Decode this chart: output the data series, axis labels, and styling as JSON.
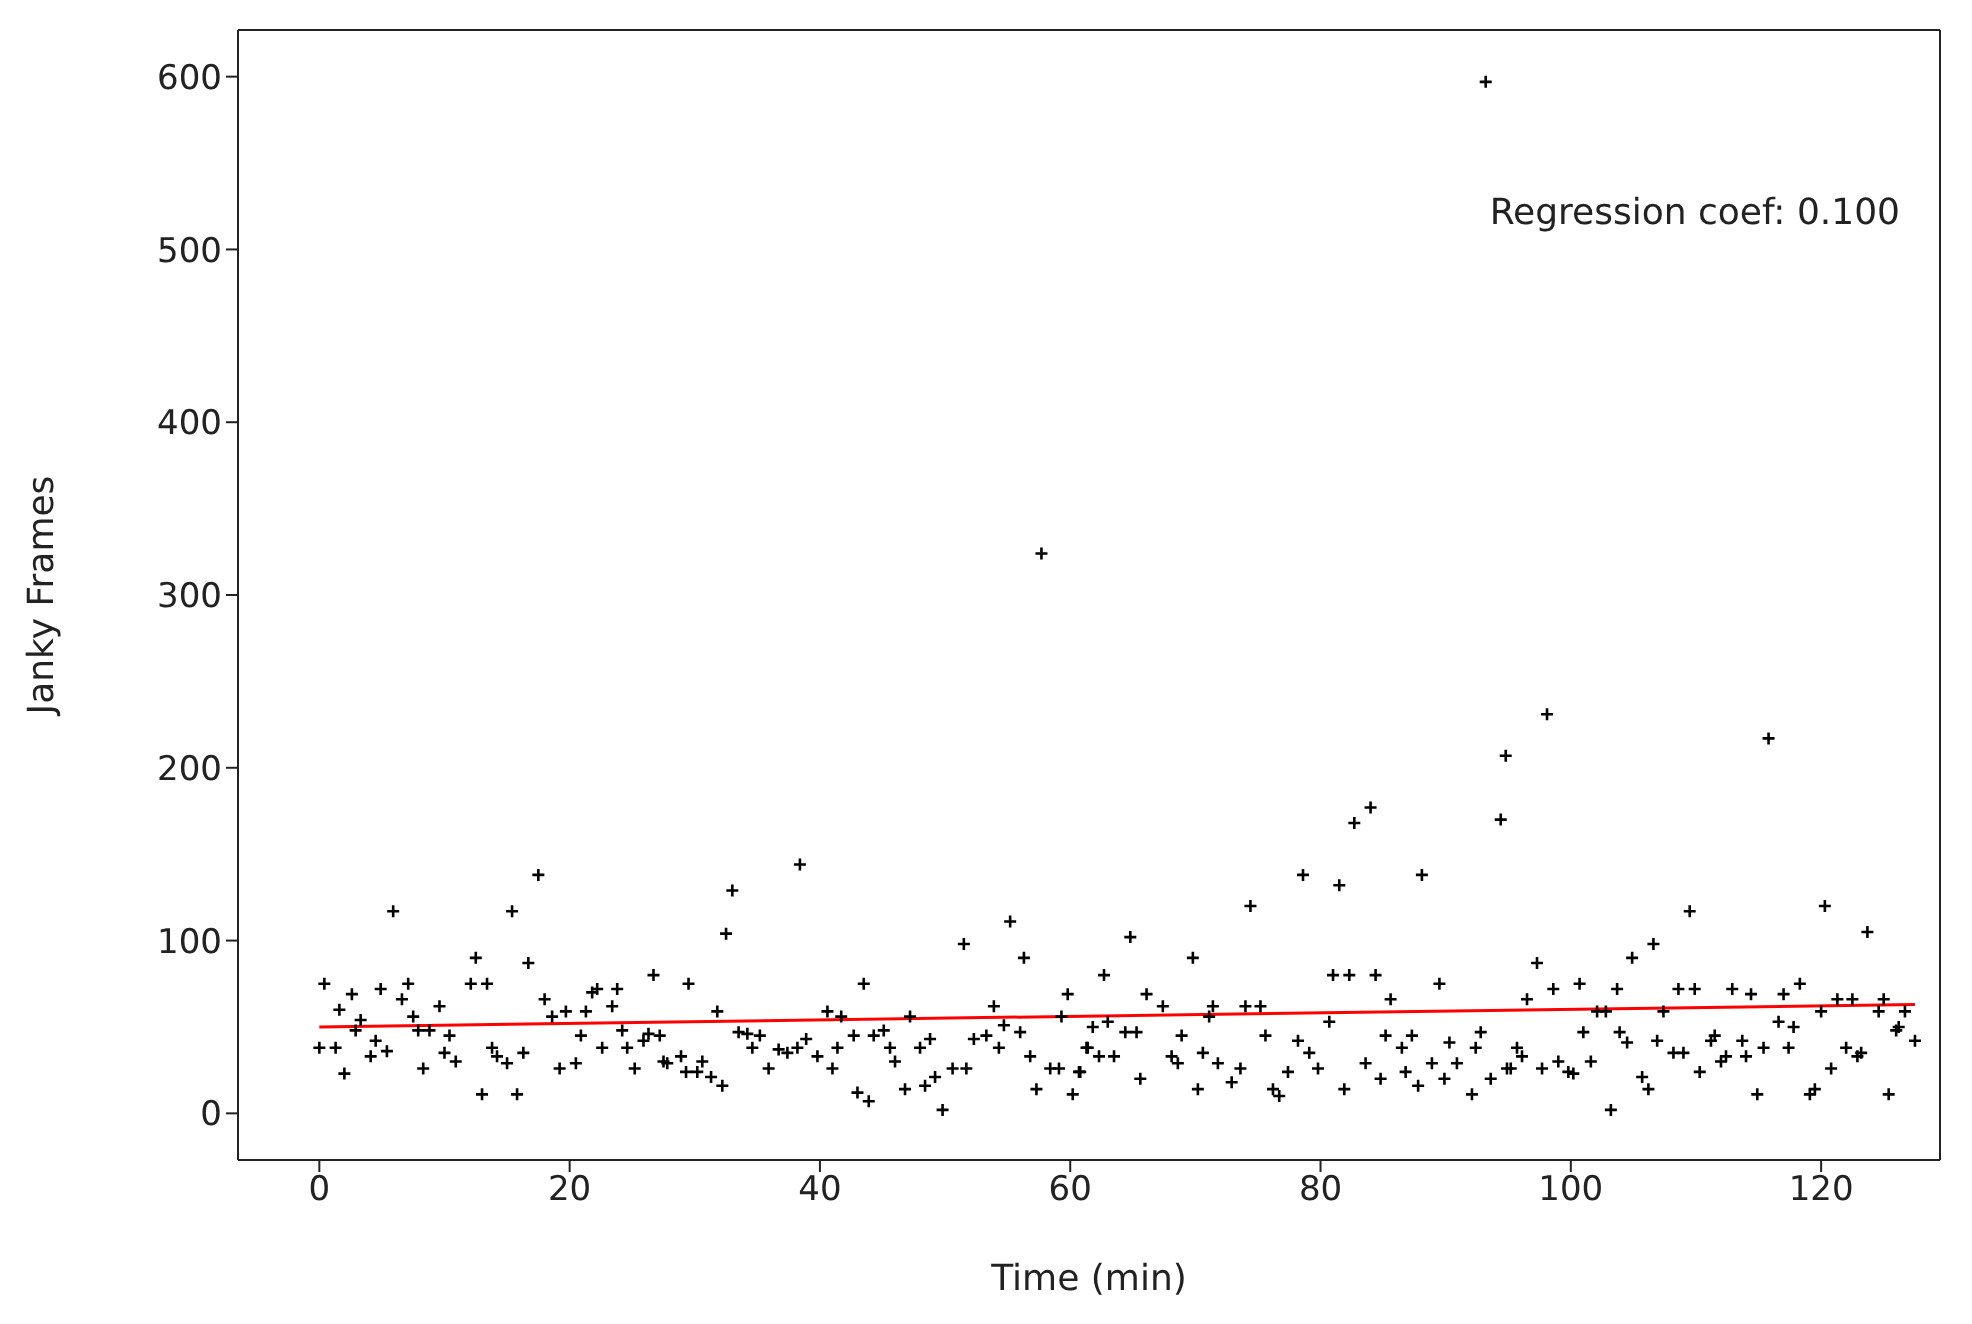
{
  "chart_data": {
    "type": "scatter",
    "xlabel": "Time (min)",
    "ylabel": "Janky Frames",
    "annotations": [
      "Regression coef: 0.100"
    ],
    "xlim": [
      -6.5,
      129.5
    ],
    "xticks": [
      0,
      20,
      40,
      60,
      80,
      100,
      120
    ],
    "ylim": [
      -27,
      627
    ],
    "yticks": [
      0,
      100,
      200,
      300,
      400,
      500,
      600
    ],
    "marker": "cross",
    "series": [
      {
        "color": "#000000",
        "x": [
          0.4,
          0,
          1.3,
          2,
          1.6,
          2.6,
          3.3,
          2.9,
          4.5,
          4.1,
          5.4,
          4.9,
          5.9,
          6.6,
          7.1,
          7.5,
          7.9,
          8.8,
          8.3,
          9.6,
          10.4,
          10,
          10.9,
          12.1,
          13.4,
          12.5,
          13,
          13.8,
          14.2,
          15,
          15.4,
          16.3,
          15.8,
          16.7,
          17.5,
          18,
          18.6,
          19.7,
          19.2,
          20.5,
          20.9,
          21.3,
          21.8,
          22.2,
          22.6,
          23.4,
          23.8,
          24.2,
          24.6,
          25.2,
          25.9,
          26.3,
          26.7,
          27.2,
          27.5,
          29.5,
          28.9,
          27.8,
          29.3,
          30.2,
          30.6,
          31.3,
          32.2,
          31.8,
          32.5,
          33,
          33.5,
          34.2,
          34.6,
          35.2,
          35.9,
          36.7,
          37.4,
          38.2,
          38.4,
          38.9,
          39.8,
          40.6,
          41,
          41.4,
          41.7,
          42.7,
          43.5,
          43,
          43.9,
          44.3,
          45.1,
          45.6,
          46,
          46.8,
          47.2,
          48,
          48.8,
          48.4,
          49.2,
          49.8,
          50.6,
          51.7,
          51.5,
          52.3,
          53.3,
          53.9,
          54.3,
          54.7,
          55.2,
          56.3,
          56,
          56.8,
          57.3,
          57.7,
          58.4,
          59.1,
          59.8,
          59.3,
          60.2,
          60.7,
          61.3,
          64.8,
          62.7,
          61.8,
          63,
          61.4,
          62.3,
          63.5,
          60.8,
          64.4,
          65.3,
          66.1,
          67.4,
          65.6,
          68.1,
          68.6,
          68.9,
          69.8,
          70.2,
          70.6,
          71.4,
          71.1,
          71.8,
          72.9,
          73.6,
          74,
          75.2,
          74.4,
          75.6,
          76.2,
          76.7,
          77.4,
          78.2,
          78.6,
          79.1,
          79.8,
          80.7,
          81,
          82.3,
          81.5,
          81.9,
          82.7,
          84,
          83.6,
          84.4,
          84.8,
          85.2,
          85.6,
          86.5,
          86.8,
          87.3,
          88.1,
          87.8,
          88.9,
          89.5,
          89.9,
          90.3,
          90.9,
          92.1,
          92.4,
          92.8,
          93.2,
          93.6,
          94.4,
          94.8,
          94.9,
          95.2,
          95.7,
          96.1,
          96.5,
          97.3,
          97.7,
          98.1,
          98.6,
          99,
          99.8,
          100.2,
          100.7,
          101,
          101.6,
          102.1,
          102.8,
          103.2,
          103.7,
          103.9,
          104.5,
          104.9,
          105.7,
          106.2,
          106.6,
          106.9,
          107.4,
          108.2,
          108.6,
          109,
          109.5,
          109.9,
          110.3,
          111.2,
          111.5,
          112,
          112.4,
          112.9,
          113.7,
          114,
          114.4,
          114.9,
          115.4,
          115.8,
          116.6,
          117,
          117.4,
          117.8,
          118.3,
          119.1,
          119.5,
          120,
          120.3,
          120.8,
          121.3,
          122,
          122.5,
          122.9,
          123.2,
          123.7,
          124.6,
          125,
          125.4,
          126,
          126.2,
          126.7,
          127.5
        ],
        "values": [
          75,
          38,
          38,
          23,
          60,
          69,
          54,
          48,
          42,
          33,
          36,
          72,
          117,
          66,
          75,
          56,
          48,
          48,
          26,
          62,
          45,
          35,
          30,
          75,
          75,
          90,
          11,
          38,
          33,
          29,
          117,
          35,
          11,
          87,
          138,
          66,
          56,
          59,
          26,
          29,
          45,
          59,
          70,
          72,
          38,
          62,
          72,
          48,
          38,
          26,
          42,
          46,
          80,
          45,
          30,
          75,
          33,
          29,
          24,
          24,
          30,
          21,
          16,
          59,
          104,
          129,
          47,
          46,
          38,
          45,
          26,
          37,
          35,
          38,
          144,
          43,
          33,
          59,
          26,
          38,
          56,
          45,
          75,
          12,
          7,
          45,
          48,
          38,
          30,
          14,
          56,
          38,
          43,
          16,
          21,
          2,
          26,
          26,
          98,
          43,
          45,
          62,
          38,
          51,
          111,
          90,
          47,
          33,
          14,
          324,
          26,
          26,
          69,
          56,
          11,
          24,
          38,
          102,
          80,
          50,
          53,
          38,
          33,
          33,
          24,
          47,
          47,
          69,
          62,
          20,
          33,
          29,
          45,
          90,
          14,
          35,
          62,
          56,
          29,
          18,
          26,
          62,
          62,
          120,
          45,
          14,
          10,
          24,
          42,
          138,
          35,
          26,
          53,
          80,
          80,
          132,
          14,
          168,
          177,
          29,
          80,
          20,
          45,
          66,
          38,
          24,
          45,
          138,
          16,
          29,
          75,
          20,
          41,
          29,
          11,
          38,
          47,
          597,
          20,
          170,
          207,
          26,
          26,
          38,
          33,
          66,
          87,
          26,
          231,
          72,
          30,
          24,
          23,
          75,
          47,
          30,
          59,
          59,
          2,
          72,
          47,
          41,
          90,
          21,
          14,
          98,
          42,
          59,
          35,
          72,
          35,
          117,
          72,
          24,
          42,
          45,
          30,
          33,
          72,
          42,
          33,
          69,
          11,
          38,
          217,
          53,
          69,
          38,
          50,
          75,
          11,
          14,
          59,
          120,
          26,
          66,
          38,
          66,
          33,
          35,
          105,
          59,
          66,
          11,
          48,
          50,
          59,
          42
        ]
      },
      {
        "type": "line",
        "marker": "none",
        "color": "#ff0000",
        "x": [
          0,
          127.5
        ],
        "values": [
          50,
          63
        ]
      }
    ]
  }
}
